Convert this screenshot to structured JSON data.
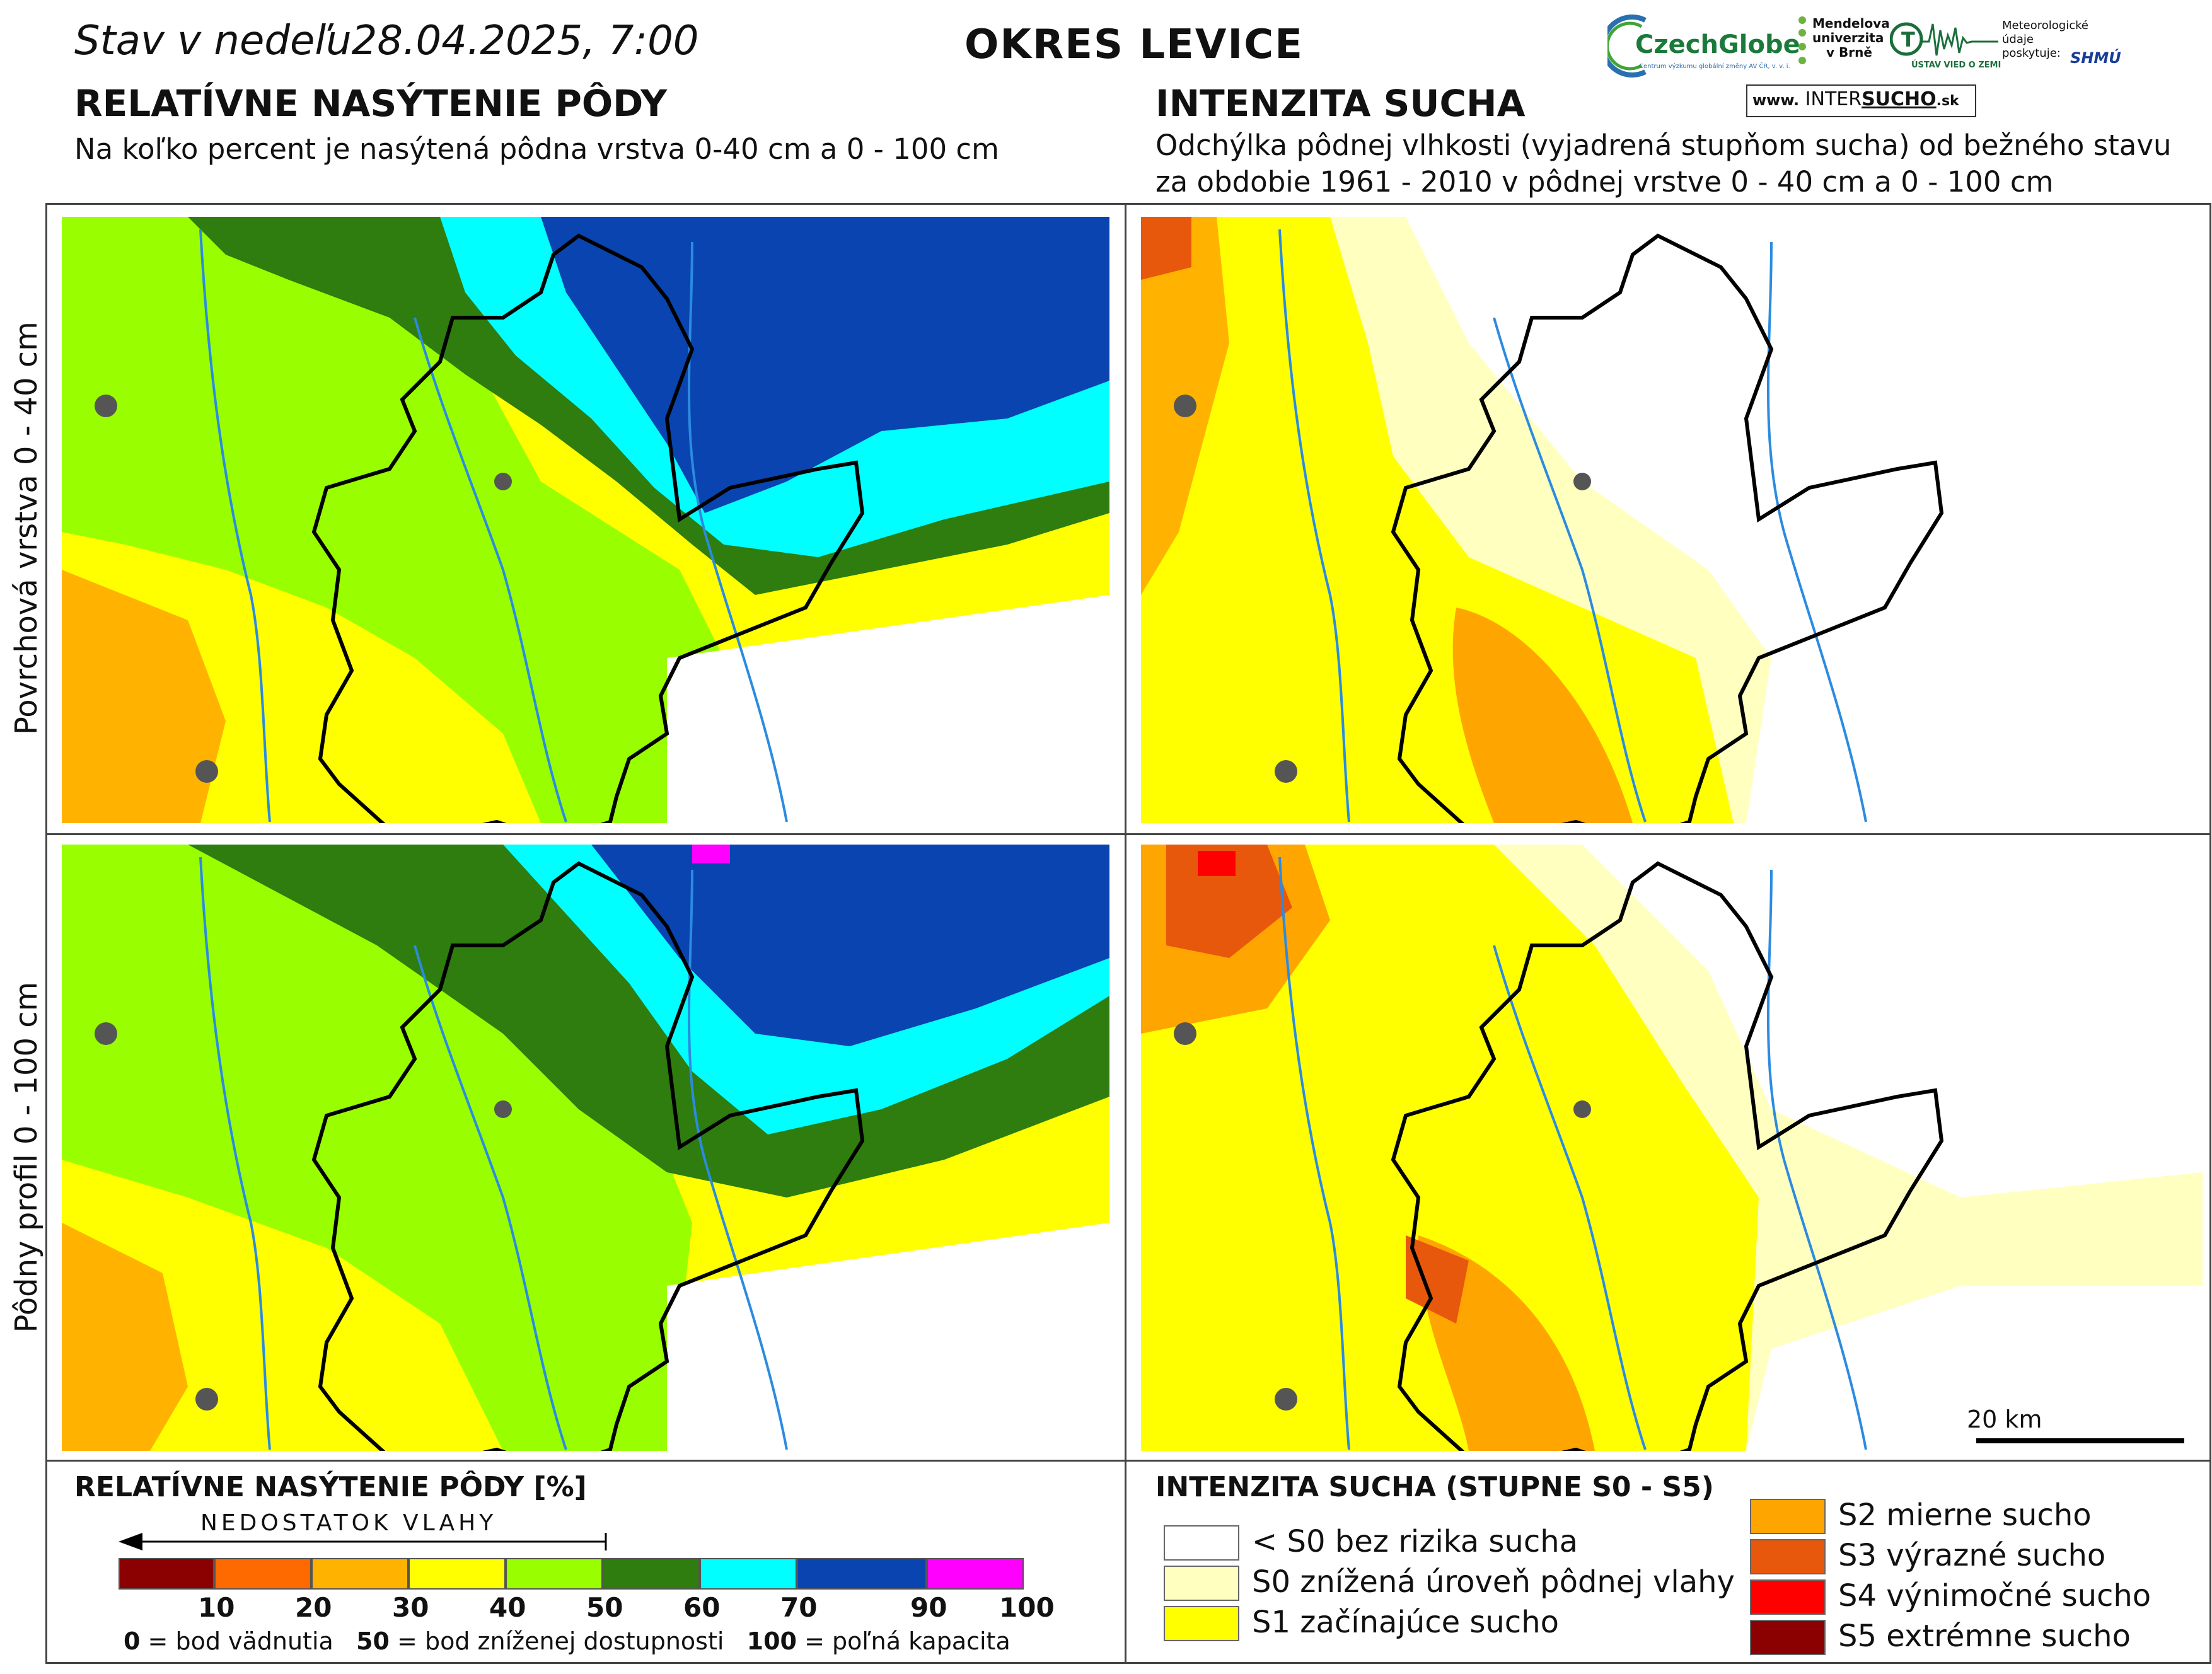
{
  "header": {
    "date_prefix": "Stav v nedeľu",
    "date_value": "28.04.2025, 7:00",
    "district": "OKRES  LEVICE",
    "left_title": "RELATÍVNE NASÝTENIE PÔDY",
    "left_subtitle": "Na koľko percent je nasýtená pôdna vrstva 0-40 cm a 0 - 100 cm",
    "right_title": "INTENZITA SUCHA",
    "right_subtitle_1": "Odchýlka pôdnej vlhkosti (vyjadrená stupňom sucha) od bežného stavu",
    "right_subtitle_2": "za obdobie 1961 - 2010 v pôdnej vrstve 0 - 40 cm a 0 - 100 cm"
  },
  "logos": {
    "czechglobe": "CzechGlobe",
    "czechglobe_sub": "Centrum výzkumu globální změny AV ČR, v. v. i.",
    "mendelu_1": "Mendelova",
    "mendelu_2": "univerzita",
    "mendelu_3": "v Brně",
    "uvz": "ÚSTAV VIED O ZEMI",
    "meteo_1": "Meteorologické",
    "meteo_2": "údaje",
    "meteo_3": "poskytuje:",
    "shmu": "SHMÚ",
    "web_prefix": "www.",
    "web_inter": "INTER",
    "web_sucho": "SUCHO",
    "web_suffix": ".sk"
  },
  "rows": {
    "top_label": "Povrchová vrstva 0 - 40 cm",
    "bottom_label": "Pôdny profil 0 - 100 cm"
  },
  "scale_bar": {
    "label": "20 km"
  },
  "saturation_legend": {
    "title": "RELATÍVNE NASÝTENIE PÔDY [%]",
    "arrow_label": "NEDOSTATOK VLAHY",
    "ticks": [
      "10",
      "20",
      "30",
      "40",
      "50",
      "60",
      "70",
      "90",
      "100"
    ],
    "colors": [
      "#8b0000",
      "#ff6a00",
      "#ffb300",
      "#ffff00",
      "#99ff00",
      "#2e7d0e",
      "#00ffff",
      "#0a44b0",
      "#ff00ff"
    ],
    "note_0_value": "0",
    "note_0_text": " = bod vädnutia",
    "note_50_value": "50",
    "note_50_text": " = bod zníženej dostupnosti",
    "note_100_value": "100",
    "note_100_text": " = poľná kapacita"
  },
  "drought_legend": {
    "title": "INTENZITA SUCHA (STUPNE S0 - S5)",
    "classes": [
      {
        "label": "< S0 bez rizika sucha",
        "color": "#ffffff"
      },
      {
        "label": "S0 znížená úroveň pôdnej vlahy",
        "color": "#ffffc0"
      },
      {
        "label": "S1 začínajúce sucho",
        "color": "#ffff00"
      },
      {
        "label": "S2 mierne sucho",
        "color": "#ffa500"
      },
      {
        "label": "S3 výrazné sucho",
        "color": "#e8580c"
      },
      {
        "label": "S4 výnimočné sucho",
        "color": "#ff0000"
      },
      {
        "label": "S5 extrémne sucho",
        "color": "#8b0000"
      }
    ]
  }
}
